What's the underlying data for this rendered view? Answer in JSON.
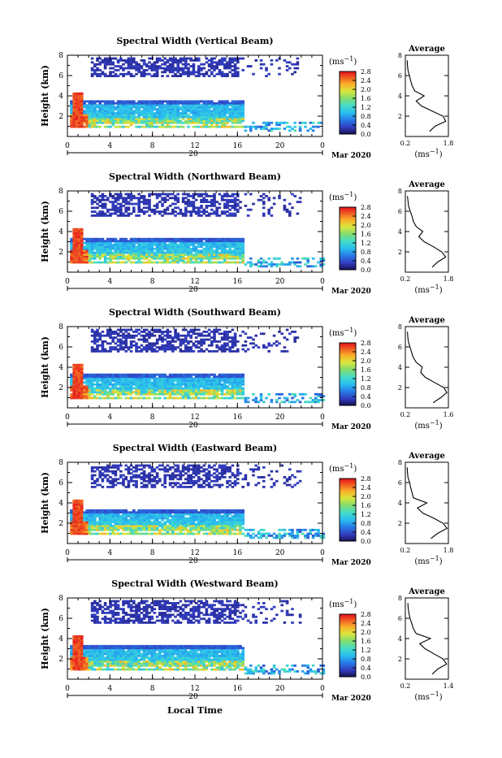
{
  "figure": {
    "xlabel": "Local Time",
    "date_label": "Mar 2020",
    "day_marker": "20",
    "colorbar_unit": "(ms",
    "colorbar_unit_sup": "−1",
    "colorbar_unit_close": ")",
    "average_title": "Average",
    "avg_xunit": "(ms",
    "avg_xunit_sup": "−1",
    "avg_xunit_close": ")",
    "height_ylabel": "Height (km)"
  },
  "chart_data": [
    {
      "type": "heatmap",
      "title": "Spectral Width (Vertical Beam)",
      "xlabel": "",
      "ylabel": "Height (km)",
      "xlim": [
        0,
        24
      ],
      "ylim": [
        0,
        8
      ],
      "xticks": [
        "0",
        "4",
        "8",
        "12",
        "16",
        "20",
        "0"
      ],
      "yticks": [
        "2",
        "4",
        "6",
        "8"
      ],
      "colorbar": {
        "label": "(ms−1)",
        "range": [
          0.0,
          2.8
        ],
        "ticks": [
          "0.0",
          "0.4",
          "0.8",
          "1.2",
          "1.6",
          "2.0",
          "2.4",
          "2.8"
        ]
      },
      "features": {
        "low_layer_top_km": 3.6,
        "low_layer_end_h": 16.5,
        "upper_layer_range_km": [
          6.0,
          7.9
        ],
        "bottom_cloud_range_km": [
          0.6,
          1.6
        ]
      },
      "average": {
        "xlim": [
          0.2,
          1.8
        ],
        "ylim": [
          0,
          8
        ],
        "xticks": [
          "0.2",
          "1.8"
        ],
        "yticks": [
          "2",
          "4",
          "6",
          "8"
        ],
        "height": [
          0.5,
          1.0,
          1.5,
          2.0,
          2.5,
          3.0,
          3.5,
          4.0,
          4.5,
          5.0,
          5.5,
          6.0,
          6.5,
          7.0,
          7.5
        ],
        "values": [
          1.1,
          1.3,
          1.7,
          1.6,
          1.2,
          0.8,
          0.6,
          0.9,
          0.55,
          0.45,
          0.4,
          0.35,
          0.3,
          0.28,
          0.27
        ]
      }
    },
    {
      "type": "heatmap",
      "title": "Spectral Width (Northward Beam)",
      "xlabel": "",
      "ylabel": "Height (km)",
      "xlim": [
        0,
        24
      ],
      "ylim": [
        0,
        8
      ],
      "xticks": [
        "0",
        "4",
        "8",
        "12",
        "16",
        "20",
        "0"
      ],
      "yticks": [
        "2",
        "4",
        "6",
        "8"
      ],
      "colorbar": {
        "label": "(ms−1)",
        "range": [
          0.0,
          2.8
        ],
        "ticks": [
          "0.0",
          "0.4",
          "0.8",
          "1.2",
          "1.6",
          "2.0",
          "2.4",
          "2.8"
        ]
      },
      "features": {
        "low_layer_top_km": 3.4,
        "low_layer_end_h": 16.5,
        "upper_layer_range_km": [
          5.5,
          7.9
        ],
        "bottom_cloud_range_km": [
          0.6,
          1.6
        ]
      },
      "average": {
        "xlim": [
          0.2,
          1.8
        ],
        "ylim": [
          0,
          8
        ],
        "xticks": [
          "0.2",
          "1.8"
        ],
        "yticks": [
          "2",
          "4",
          "6",
          "8"
        ],
        "height": [
          0.5,
          1.0,
          1.5,
          2.0,
          2.5,
          3.0,
          3.5,
          4.0,
          4.5,
          5.0,
          5.5,
          6.0,
          6.5,
          7.0,
          7.5
        ],
        "values": [
          1.2,
          1.4,
          1.7,
          1.55,
          1.25,
          0.9,
          0.7,
          0.85,
          0.6,
          0.5,
          0.45,
          0.38,
          0.32,
          0.3,
          0.28
        ]
      }
    },
    {
      "type": "heatmap",
      "title": "Spectral Width (Southward Beam)",
      "xlabel": "",
      "ylabel": "Height (km)",
      "xlim": [
        0,
        24
      ],
      "ylim": [
        0,
        8
      ],
      "xticks": [
        "0",
        "4",
        "8",
        "12",
        "16",
        "20",
        "0"
      ],
      "yticks": [
        "2",
        "4",
        "6",
        "8"
      ],
      "colorbar": {
        "label": "(ms−1)",
        "range": [
          0.0,
          2.8
        ],
        "ticks": [
          "0.0",
          "0.4",
          "0.8",
          "1.2",
          "1.6",
          "2.0",
          "2.4",
          "2.8"
        ]
      },
      "features": {
        "low_layer_top_km": 3.4,
        "low_layer_end_h": 16.5,
        "upper_layer_range_km": [
          5.5,
          7.9
        ],
        "bottom_cloud_range_km": [
          0.6,
          1.6
        ]
      },
      "average": {
        "xlim": [
          0.2,
          1.6
        ],
        "ylim": [
          0,
          8
        ],
        "xticks": [
          "0.2",
          "1.6"
        ],
        "yticks": [
          "2",
          "4",
          "6",
          "8"
        ],
        "height": [
          0.5,
          1.0,
          1.5,
          2.0,
          2.5,
          3.0,
          3.5,
          4.0,
          4.5,
          5.0,
          5.5,
          6.0,
          6.5,
          7.0,
          7.5
        ],
        "values": [
          1.1,
          1.35,
          1.55,
          1.45,
          1.15,
          0.85,
          0.7,
          0.75,
          0.55,
          0.45,
          0.4,
          0.35,
          0.3,
          0.28,
          0.27
        ]
      }
    },
    {
      "type": "heatmap",
      "title": "Spectral Width (Eastward Beam)",
      "xlabel": "",
      "ylabel": "Height (km)",
      "xlim": [
        0,
        24
      ],
      "ylim": [
        0,
        8
      ],
      "xticks": [
        "0",
        "4",
        "8",
        "12",
        "16",
        "20",
        "0"
      ],
      "yticks": [
        "2",
        "4",
        "6",
        "8"
      ],
      "colorbar": {
        "label": "(ms−1)",
        "range": [
          0.0,
          2.8
        ],
        "ticks": [
          "0.0",
          "0.4",
          "0.8",
          "1.2",
          "1.6",
          "2.0",
          "2.4",
          "2.8"
        ]
      },
      "features": {
        "low_layer_top_km": 3.5,
        "low_layer_end_h": 16.5,
        "upper_layer_range_km": [
          5.5,
          7.9
        ],
        "bottom_cloud_range_km": [
          0.6,
          1.6
        ]
      },
      "average": {
        "xlim": [
          0.2,
          1.8
        ],
        "ylim": [
          0,
          8
        ],
        "xticks": [
          "0.2",
          "1.8"
        ],
        "yticks": [
          "2",
          "4",
          "6",
          "8"
        ],
        "height": [
          0.5,
          1.0,
          1.5,
          2.0,
          2.5,
          3.0,
          3.5,
          4.0,
          4.5,
          5.0,
          5.5,
          6.0,
          6.5,
          7.0,
          7.5
        ],
        "values": [
          1.15,
          1.4,
          1.75,
          1.6,
          1.25,
          0.85,
          0.65,
          1.0,
          0.5,
          0.45,
          0.4,
          0.36,
          0.3,
          0.28,
          0.27
        ]
      }
    },
    {
      "type": "heatmap",
      "title": "Spectral Width (Westward Beam)",
      "xlabel": "Local Time",
      "ylabel": "Height (km)",
      "xlim": [
        0,
        24
      ],
      "ylim": [
        0,
        8
      ],
      "xticks": [
        "0",
        "4",
        "8",
        "12",
        "16",
        "20",
        "0"
      ],
      "yticks": [
        "2",
        "4",
        "6",
        "8"
      ],
      "colorbar": {
        "label": "(ms−1)",
        "range": [
          0.0,
          2.8
        ],
        "ticks": [
          "0.0",
          "0.4",
          "0.8",
          "1.2",
          "1.6",
          "2.0",
          "2.4",
          "2.8"
        ]
      },
      "features": {
        "low_layer_top_km": 3.5,
        "low_layer_end_h": 16.5,
        "upper_layer_range_km": [
          5.5,
          7.9
        ],
        "bottom_cloud_range_km": [
          0.6,
          1.6
        ]
      },
      "average": {
        "xlim": [
          0.2,
          1.4
        ],
        "ylim": [
          0,
          8
        ],
        "xticks": [
          "0.2",
          "1.4"
        ],
        "yticks": [
          "2",
          "4",
          "6",
          "8"
        ],
        "height": [
          0.5,
          1.0,
          1.5,
          2.0,
          2.5,
          3.0,
          3.5,
          4.0,
          4.5,
          5.0,
          5.5,
          6.0,
          6.5,
          7.0,
          7.5
        ],
        "values": [
          0.95,
          1.1,
          1.35,
          1.25,
          1.0,
          0.75,
          0.6,
          0.9,
          0.5,
          0.42,
          0.38,
          0.33,
          0.3,
          0.28,
          0.27
        ]
      }
    }
  ]
}
